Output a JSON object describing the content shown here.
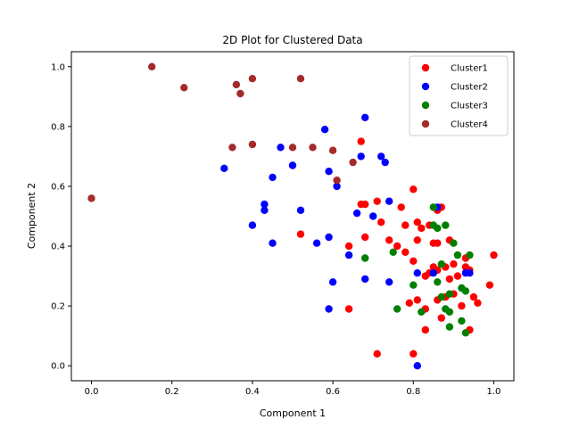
{
  "chart_data": {
    "type": "scatter",
    "title": "2D Plot for Clustered Data",
    "xlabel": "Component 1",
    "ylabel": "Component 2",
    "xlim": [
      -0.05,
      1.05
    ],
    "ylim": [
      -0.05,
      1.05
    ],
    "xticks": [
      "0.0",
      "0.2",
      "0.4",
      "0.6",
      "0.8",
      "1.0"
    ],
    "yticks": [
      "0.0",
      "0.2",
      "0.4",
      "0.6",
      "0.8",
      "1.0"
    ],
    "grid": false,
    "legend_position": "top-right",
    "series": [
      {
        "name": "Cluster1",
        "color": "#ff0000",
        "points": [
          [
            0.71,
            0.04
          ],
          [
            0.8,
            0.04
          ],
          [
            0.83,
            0.12
          ],
          [
            0.64,
            0.19
          ],
          [
            0.79,
            0.21
          ],
          [
            0.81,
            0.22
          ],
          [
            0.86,
            0.22
          ],
          [
            0.88,
            0.23
          ],
          [
            0.9,
            0.24
          ],
          [
            0.83,
            0.19
          ],
          [
            0.87,
            0.16
          ],
          [
            0.92,
            0.2
          ],
          [
            0.95,
            0.23
          ],
          [
            0.96,
            0.21
          ],
          [
            0.99,
            0.27
          ],
          [
            0.94,
            0.12
          ],
          [
            0.89,
            0.29
          ],
          [
            0.91,
            0.3
          ],
          [
            0.84,
            0.31
          ],
          [
            0.86,
            0.32
          ],
          [
            0.83,
            0.3
          ],
          [
            0.8,
            0.35
          ],
          [
            0.85,
            0.33
          ],
          [
            0.88,
            0.33
          ],
          [
            0.9,
            0.34
          ],
          [
            0.93,
            0.33
          ],
          [
            0.94,
            0.32
          ],
          [
            0.93,
            0.36
          ],
          [
            1.0,
            0.37
          ],
          [
            0.64,
            0.4
          ],
          [
            0.68,
            0.43
          ],
          [
            0.74,
            0.42
          ],
          [
            0.76,
            0.4
          ],
          [
            0.78,
            0.38
          ],
          [
            0.81,
            0.42
          ],
          [
            0.85,
            0.41
          ],
          [
            0.86,
            0.41
          ],
          [
            0.89,
            0.42
          ],
          [
            0.81,
            0.48
          ],
          [
            0.82,
            0.46
          ],
          [
            0.84,
            0.47
          ],
          [
            0.86,
            0.52
          ],
          [
            0.87,
            0.53
          ],
          [
            0.8,
            0.59
          ],
          [
            0.67,
            0.54
          ],
          [
            0.68,
            0.54
          ],
          [
            0.71,
            0.55
          ],
          [
            0.72,
            0.48
          ],
          [
            0.77,
            0.53
          ],
          [
            0.78,
            0.47
          ],
          [
            0.52,
            0.44
          ],
          [
            0.67,
            0.75
          ]
        ]
      },
      {
        "name": "Cluster2",
        "color": "#0000ff",
        "points": [
          [
            0.33,
            0.66
          ],
          [
            0.4,
            0.47
          ],
          [
            0.43,
            0.52
          ],
          [
            0.43,
            0.54
          ],
          [
            0.45,
            0.41
          ],
          [
            0.45,
            0.63
          ],
          [
            0.47,
            0.73
          ],
          [
            0.5,
            0.67
          ],
          [
            0.52,
            0.52
          ],
          [
            0.56,
            0.41
          ],
          [
            0.58,
            0.79
          ],
          [
            0.59,
            0.43
          ],
          [
            0.59,
            0.65
          ],
          [
            0.59,
            0.19
          ],
          [
            0.6,
            0.28
          ],
          [
            0.61,
            0.6
          ],
          [
            0.64,
            0.37
          ],
          [
            0.66,
            0.51
          ],
          [
            0.67,
            0.7
          ],
          [
            0.68,
            0.83
          ],
          [
            0.68,
            0.29
          ],
          [
            0.7,
            0.5
          ],
          [
            0.72,
            0.7
          ],
          [
            0.73,
            0.68
          ],
          [
            0.74,
            0.55
          ],
          [
            0.74,
            0.28
          ],
          [
            0.81,
            0.31
          ],
          [
            0.81,
            0.0
          ],
          [
            0.85,
            0.31
          ],
          [
            0.86,
            0.53
          ],
          [
            0.93,
            0.31
          ],
          [
            0.94,
            0.31
          ]
        ]
      },
      {
        "name": "Cluster3",
        "color": "#008000",
        "points": [
          [
            0.68,
            0.36
          ],
          [
            0.75,
            0.38
          ],
          [
            0.76,
            0.19
          ],
          [
            0.8,
            0.27
          ],
          [
            0.82,
            0.18
          ],
          [
            0.85,
            0.47
          ],
          [
            0.85,
            0.53
          ],
          [
            0.86,
            0.46
          ],
          [
            0.86,
            0.28
          ],
          [
            0.87,
            0.34
          ],
          [
            0.87,
            0.23
          ],
          [
            0.88,
            0.47
          ],
          [
            0.88,
            0.19
          ],
          [
            0.89,
            0.24
          ],
          [
            0.89,
            0.18
          ],
          [
            0.89,
            0.13
          ],
          [
            0.9,
            0.41
          ],
          [
            0.91,
            0.37
          ],
          [
            0.92,
            0.26
          ],
          [
            0.92,
            0.15
          ],
          [
            0.93,
            0.25
          ],
          [
            0.93,
            0.11
          ],
          [
            0.94,
            0.37
          ]
        ]
      },
      {
        "name": "Cluster4",
        "color": "#a52a2a",
        "points": [
          [
            0.0,
            0.56
          ],
          [
            0.15,
            1.0
          ],
          [
            0.23,
            0.93
          ],
          [
            0.35,
            0.73
          ],
          [
            0.36,
            0.94
          ],
          [
            0.37,
            0.91
          ],
          [
            0.4,
            0.74
          ],
          [
            0.4,
            0.96
          ],
          [
            0.5,
            0.73
          ],
          [
            0.52,
            0.96
          ],
          [
            0.55,
            0.73
          ],
          [
            0.6,
            0.72
          ],
          [
            0.61,
            0.62
          ],
          [
            0.65,
            0.68
          ]
        ]
      }
    ]
  }
}
